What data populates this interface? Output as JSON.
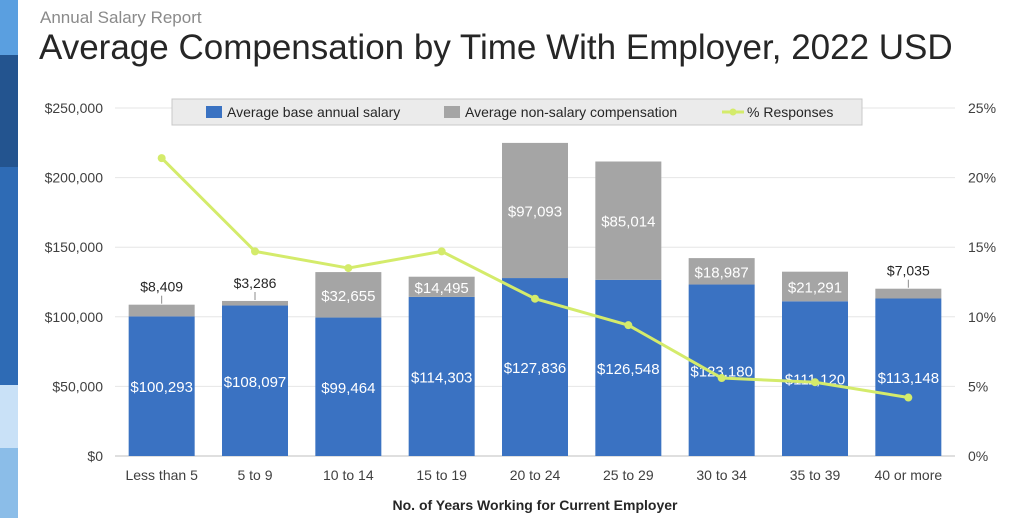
{
  "header": {
    "report_label": "Annual Salary Report",
    "title": "Average Compensation by Time With Employer, 2022 USD"
  },
  "colors": {
    "salary": "#3a72c2",
    "non_salary": "#a5a5a5",
    "responses": "#d4eb6b",
    "accent_strip": [
      "#5a9fe0",
      "#23548f",
      "#2e6bb5",
      "#c9e1f7",
      "#8bbde8"
    ]
  },
  "chart_data": {
    "type": "bar",
    "stacked": true,
    "title": "Average Compensation by Time With Employer, 2022 USD",
    "xlabel": "No. of Years Working for Current Employer",
    "ylabel": "",
    "ylim": [
      0,
      250000
    ],
    "y2lim": [
      0,
      25
    ],
    "yticks": [
      "$0",
      "$50,000",
      "$100,000",
      "$150,000",
      "$200,000",
      "$250,000"
    ],
    "y2ticks": [
      "0%",
      "5%",
      "10%",
      "15%",
      "20%",
      "25%"
    ],
    "grid": true,
    "legend_position": "top",
    "categories": [
      "Less than 5",
      "5 to 9",
      "10 to 14",
      "15 to 19",
      "20 to 24",
      "25 to 29",
      "30 to 34",
      "35 to 39",
      "40 or more"
    ],
    "series": [
      {
        "name": "Average base annual salary",
        "type": "bar",
        "values": [
          100293,
          108097,
          99464,
          114303,
          127836,
          126548,
          123180,
          111120,
          113148
        ],
        "labels": [
          "$100,293",
          "$108,097",
          "$99,464",
          "$114,303",
          "$127,836",
          "$126,548",
          "$123,180",
          "$111,120",
          "$113,148"
        ]
      },
      {
        "name": "Average non-salary compensation",
        "type": "bar",
        "values": [
          8409,
          3286,
          32655,
          14495,
          97093,
          85014,
          18987,
          21291,
          7035
        ],
        "labels": [
          "$8,409",
          "$3,286",
          "$32,655",
          "$14,495",
          "$97,093",
          "$85,014",
          "$18,987",
          "$21,291",
          "$7,035"
        ]
      },
      {
        "name": "% Responses",
        "type": "line",
        "axis": "secondary",
        "values": [
          21.4,
          14.7,
          13.5,
          14.7,
          11.3,
          9.4,
          5.6,
          5.3,
          4.2
        ]
      }
    ]
  }
}
